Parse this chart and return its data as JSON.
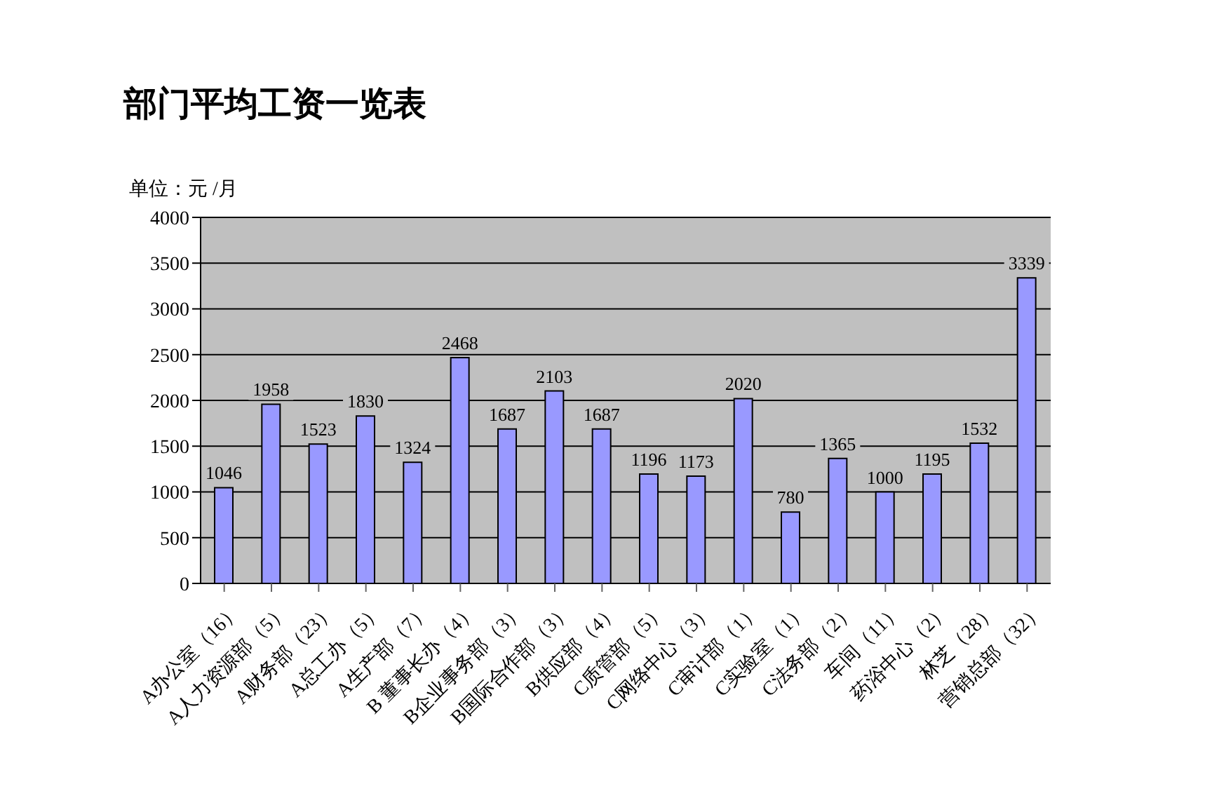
{
  "chart_data": {
    "type": "bar",
    "title": "部门平均工资一览表",
    "ylabel": "单位：元 /月",
    "categories": [
      "A办公室（16）",
      "A人力资源部（5）",
      "A财务部（23）",
      "A总工办（5）",
      "A生产部（7）",
      "B 董事长办（4）",
      "B企业事务部（3）",
      "B国际合作部（3）",
      "B供应部（4）",
      "C质管部（5）",
      "C网络中心（3）",
      "C审计部（1）",
      "C实验室（1）",
      "C法务部（2）",
      "车间（11）",
      "药浴中心（2）",
      "林芝（28）",
      "营销总部（32）"
    ],
    "values": [
      1046,
      1958,
      1523,
      1830,
      1324,
      2468,
      1687,
      2103,
      1687,
      1196,
      1173,
      2020,
      780,
      1365,
      1000,
      1195,
      1532,
      3339
    ],
    "color": "#9999ff",
    "ylim": [
      0,
      4000
    ],
    "yticks": [
      0,
      500,
      1000,
      1500,
      2000,
      2500,
      3000,
      3500,
      4000
    ],
    "grid": "y",
    "legend": false,
    "data_labels": true
  }
}
